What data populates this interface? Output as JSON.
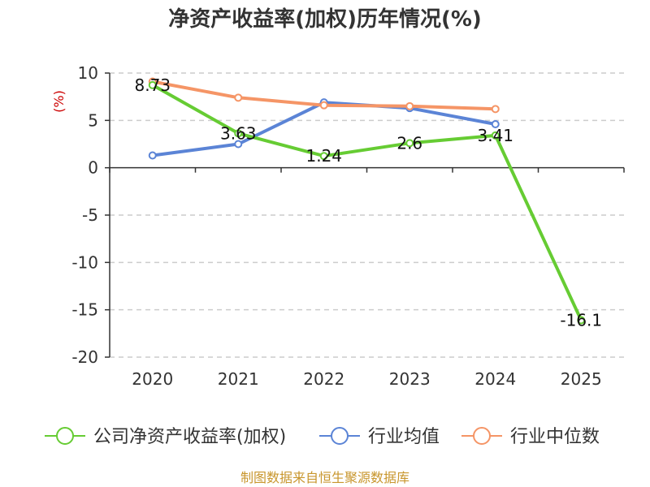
{
  "chart_data": {
    "type": "line",
    "title": "净资产收益率(加权)历年情况(%)",
    "ylabel": "(%)",
    "xlabel": "",
    "categories": [
      "2020",
      "2021",
      "2022",
      "2023",
      "2024",
      "2025"
    ],
    "ylim": [
      -20,
      10
    ],
    "yticks": [
      10,
      5,
      0,
      -5,
      -10,
      -15,
      -20
    ],
    "grid": true,
    "legend_position": "bottom",
    "series": [
      {
        "name": "公司净资产收益率(加权)",
        "color": "#66cc33",
        "values": [
          8.73,
          3.63,
          1.24,
          2.6,
          3.41,
          -16.1
        ],
        "labels": [
          "8.73",
          "3.63",
          "1.24",
          "2.6",
          "3.41",
          "-16.1"
        ]
      },
      {
        "name": "行业均值",
        "color": "#5b84d6",
        "values": [
          1.3,
          2.5,
          6.9,
          6.3,
          4.6,
          null
        ]
      },
      {
        "name": "行业中位数",
        "color": "#f59566",
        "values": [
          9.1,
          7.4,
          6.6,
          6.5,
          6.2,
          null
        ]
      }
    ]
  },
  "footer": {
    "source": "制图数据来自恒生聚源数据库",
    "source_color": "#c8962d"
  },
  "axis_label_color": "#cc0000"
}
